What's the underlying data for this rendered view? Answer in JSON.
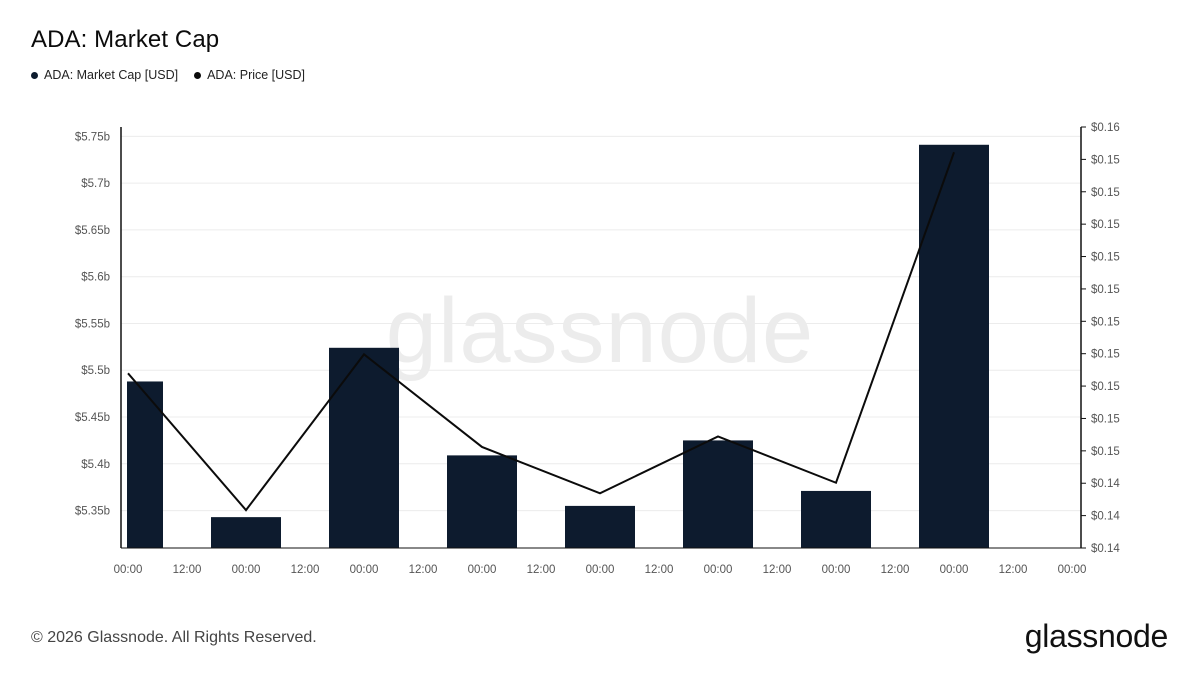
{
  "title": "ADA: Market Cap",
  "legend": [
    {
      "label": "ADA: Market Cap [USD]",
      "color": "#0d1b2e"
    },
    {
      "label": "ADA: Price [USD]",
      "color": "#0b0b0b"
    }
  ],
  "watermark": "glassnode",
  "footer": "© 2026 Glassnode. All Rights Reserved.",
  "logo": "glassnode",
  "colors": {
    "bar": "#0d1b2e",
    "line": "#0b0b0b",
    "grid": "#ececec",
    "axis": "#111111"
  },
  "chart_data": {
    "type": "bar",
    "x_tick_labels": [
      "00:00",
      "12:00",
      "00:00",
      "12:00",
      "00:00",
      "12:00",
      "00:00",
      "12:00",
      "00:00",
      "12:00",
      "00:00",
      "12:00",
      "00:00",
      "12:00",
      "00:00",
      "12:00",
      "00:00"
    ],
    "left_y_ticks": [
      "$5.35b",
      "$5.4b",
      "$5.45b",
      "$5.5b",
      "$5.55b",
      "$5.6b",
      "$5.65b",
      "$5.7b",
      "$5.75b"
    ],
    "left_y_tick_values": [
      5.35,
      5.4,
      5.45,
      5.5,
      5.55,
      5.6,
      5.65,
      5.7,
      5.75
    ],
    "right_y_ticks": [
      "$0.14",
      "$0.14",
      "$0.14",
      "$0.15",
      "$0.15",
      "$0.15",
      "$0.15",
      "$0.15",
      "$0.15",
      "$0.15",
      "$0.15",
      "$0.15",
      "$0.15",
      "$0.16"
    ],
    "ylim_left": [
      5.31,
      5.76
    ],
    "ylim_right": [
      0.14,
      0.16
    ],
    "grid": true,
    "series": [
      {
        "name": "ADA: Market Cap [USD]",
        "type": "bar",
        "axis": "left",
        "x": [
          0,
          1,
          2,
          3,
          4,
          5,
          6,
          7
        ],
        "values": [
          5.488,
          5.343,
          5.524,
          5.409,
          5.355,
          5.425,
          5.371,
          5.741
        ]
      },
      {
        "name": "ADA: Price [USD]",
        "type": "line",
        "axis": "right",
        "x": [
          0,
          1,
          2,
          3,
          4,
          5,
          6,
          7
        ],
        "values": [
          0.1483,
          0.1418,
          0.1492,
          0.1448,
          0.1426,
          0.1453,
          0.1431,
          0.1588
        ]
      }
    ]
  }
}
